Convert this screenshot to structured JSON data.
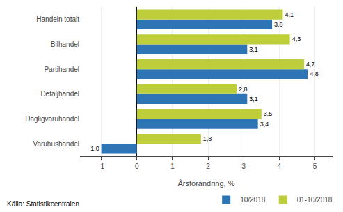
{
  "chart_data": {
    "type": "bar",
    "orientation": "horizontal",
    "categories": [
      "Varuhushandel",
      "Dagligvaruhandel",
      "Detaljhandel",
      "Partihandel",
      "Bilhandel",
      "Handeln totalt"
    ],
    "series": [
      {
        "name": "10/2018",
        "color": "#2E75B6",
        "values": [
          -1.0,
          3.4,
          3.1,
          4.8,
          3.1,
          3.8
        ],
        "value_labels": [
          "-1,0",
          "3,4",
          "3,1",
          "4,8",
          "3,1",
          "3,8"
        ]
      },
      {
        "name": "01-10/2018",
        "color": "#BECE3B",
        "values": [
          1.8,
          3.5,
          2.8,
          4.7,
          4.3,
          4.1
        ],
        "value_labels": [
          "1,8",
          "3,5",
          "2,8",
          "4,7",
          "4,3",
          "4,1"
        ]
      }
    ],
    "xlabel": "Årsförändring, %",
    "xlim": [
      -1.6,
      5.5
    ],
    "xticks": [
      -1,
      0,
      1,
      2,
      3,
      4,
      5
    ],
    "grid": true,
    "legend": "lower right",
    "data_labels": true,
    "annotations": [
      "Källa: Statistikcentralen"
    ]
  }
}
